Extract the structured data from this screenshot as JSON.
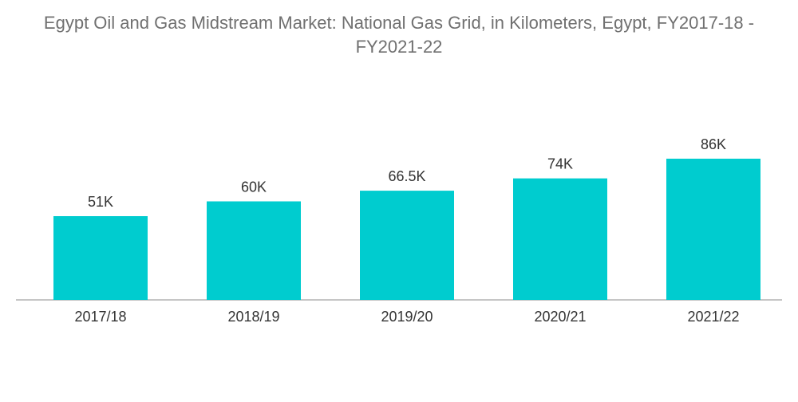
{
  "chart_data": {
    "type": "bar",
    "title": "Egypt Oil and Gas Midstream Market: National Gas Grid, in Kilometers, Egypt, FY2017-18 - FY2021-22",
    "title_lines": [
      "Egypt Oil and Gas Midstream Market: National Gas Grid, in Kilometers, Egypt, FY2017-18 -",
      "FY2021-22"
    ],
    "categories": [
      "2017/18",
      "2018/19",
      "2019/20",
      "2020/21",
      "2021/22"
    ],
    "values": [
      51000,
      60000,
      66500,
      74000,
      86000
    ],
    "value_labels": [
      "51K",
      "60K",
      "66.5K",
      "74K",
      "86K"
    ],
    "xlabel": "",
    "ylabel": "",
    "ylim": [
      0,
      100000
    ],
    "grid": false,
    "legend": "none",
    "colors": {
      "bar": "#00cccf",
      "axis": "#8c8c8c",
      "text": "#333333",
      "title": "#707070"
    }
  }
}
